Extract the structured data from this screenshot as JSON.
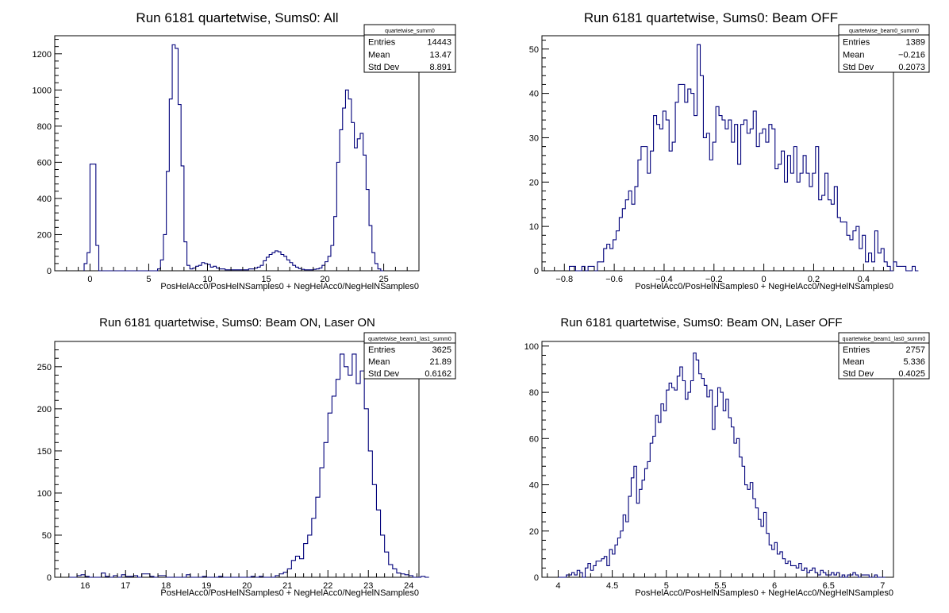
{
  "chart_data": [
    {
      "type": "histogram",
      "title": "Run 6181 quartetwise, Sums0: All",
      "xlabel": "PosHelAcc0/PosHelNSamples0 + NegHelAcc0/NegHelNSamples0",
      "ylabel": "",
      "xlim": [
        -3,
        28
      ],
      "ylim": [
        0,
        1300
      ],
      "xticks": [
        0,
        5,
        10,
        15,
        20,
        25
      ],
      "xtick_labels": [
        "0",
        "5",
        "10",
        "15",
        "20",
        "25"
      ],
      "yticks": [
        0,
        200,
        400,
        600,
        800,
        1000,
        1200
      ],
      "ytick_labels": [
        "0",
        "200",
        "400",
        "600",
        "800",
        "1000",
        "1200"
      ],
      "bin_start": -0.5,
      "bin_width": 0.25,
      "values": [
        40,
        100,
        590,
        590,
        140,
        0,
        0,
        0,
        0,
        0,
        0,
        0,
        0,
        0,
        0,
        0,
        0,
        0,
        0,
        0,
        0,
        0,
        0,
        0,
        0,
        10,
        60,
        200,
        550,
        950,
        1250,
        1230,
        920,
        580,
        160,
        30,
        10,
        15,
        25,
        30,
        45,
        40,
        35,
        20,
        25,
        15,
        10,
        10,
        5,
        5,
        5,
        5,
        5,
        5,
        5,
        5,
        10,
        10,
        15,
        20,
        30,
        55,
        75,
        90,
        100,
        110,
        105,
        90,
        80,
        60,
        45,
        30,
        20,
        12,
        8,
        5,
        5,
        5,
        8,
        10,
        15,
        30,
        50,
        80,
        140,
        300,
        600,
        780,
        900,
        1000,
        950,
        820,
        680,
        730,
        760,
        640,
        450,
        250,
        100,
        40,
        10,
        0
      ],
      "stats": {
        "name": "quartetwise_summ0",
        "entries_label": "Entries",
        "entries": "14443",
        "mean_label": "Mean",
        "mean": "13.47",
        "std_label": "Std Dev",
        "std": "8.891"
      }
    },
    {
      "type": "histogram",
      "title": "Run 6181 quartetwise, Sums0: Beam OFF",
      "xlabel": "PosHelAcc0/PosHelNSamples0 + NegHelAcc0/NegHelNSamples0",
      "ylabel": "",
      "xlim": [
        -0.89,
        0.52
      ],
      "ylim": [
        0,
        53
      ],
      "xticks": [
        -0.8,
        -0.6,
        -0.4,
        -0.2,
        0,
        0.2,
        0.4
      ],
      "xtick_labels": [
        "−0.8",
        "−0.6",
        "−0.4",
        "−0.2",
        "0",
        "0.2",
        "0.4"
      ],
      "yticks": [
        0,
        10,
        20,
        30,
        40,
        50
      ],
      "ytick_labels": [
        "0",
        "10",
        "20",
        "30",
        "40",
        "50"
      ],
      "bin_start": -0.78,
      "bin_width": 0.0125,
      "values": [
        1,
        1,
        0,
        0,
        1,
        0,
        1,
        1,
        0,
        2,
        2,
        5,
        6,
        5,
        7,
        9,
        12,
        14,
        16,
        18,
        15,
        19,
        25,
        28,
        28,
        22,
        27,
        35,
        33,
        32,
        36,
        34,
        27,
        29,
        38,
        42,
        42,
        38,
        41,
        40,
        35,
        51,
        44,
        30,
        31,
        25,
        29,
        37,
        35,
        34,
        32,
        34,
        29,
        33,
        24,
        33,
        34,
        31,
        32,
        36,
        28,
        31,
        32,
        29,
        33,
        32,
        23,
        24,
        27,
        20,
        26,
        22,
        28,
        20,
        22,
        26,
        22,
        19,
        22,
        28,
        16,
        17,
        22,
        16,
        15,
        19,
        12,
        11,
        11,
        8,
        7,
        9,
        10,
        5,
        8,
        2,
        4,
        2,
        9,
        4,
        5,
        2,
        1,
        0,
        2,
        1,
        1,
        1,
        0,
        0,
        1,
        0
      ],
      "stats": {
        "name": "quartetwise_beam0_summ0",
        "entries_label": "Entries",
        "entries": "1389",
        "mean_label": "Mean",
        "mean": "−0.216",
        "std_label": "Std Dev",
        "std": "0.2073"
      }
    },
    {
      "type": "histogram",
      "title": "Run 6181 quartetwise, Sums0: Beam ON, Laser ON",
      "xlabel": "PosHelAcc0/PosHelNSamples0 + NegHelAcc0/NegHelNSamples0",
      "ylabel": "",
      "xlim": [
        15.25,
        24.25
      ],
      "ylim": [
        0,
        280
      ],
      "xticks": [
        16,
        17,
        18,
        19,
        20,
        21,
        22,
        23,
        24
      ],
      "xtick_labels": [
        "16",
        "17",
        "18",
        "19",
        "20",
        "21",
        "22",
        "23",
        "24"
      ],
      "yticks": [
        0,
        50,
        100,
        150,
        200,
        250
      ],
      "ytick_labels": [
        "0",
        "50",
        "100",
        "150",
        "200",
        "250"
      ],
      "bin_start": 15.6,
      "bin_width": 0.1,
      "values": [
        0,
        0,
        2,
        3,
        1,
        0,
        0,
        0,
        5,
        1,
        0,
        2,
        0,
        3,
        1,
        1,
        2,
        0,
        4,
        4,
        1,
        0,
        2,
        2,
        0,
        0,
        0,
        0,
        0,
        3,
        0,
        0,
        0,
        1,
        0,
        0,
        0,
        1,
        0,
        0,
        0,
        0,
        0,
        0,
        0,
        1,
        0,
        1,
        0,
        0,
        0,
        2,
        4,
        6,
        10,
        20,
        25,
        22,
        40,
        50,
        70,
        95,
        130,
        160,
        195,
        215,
        235,
        265,
        250,
        240,
        265,
        230,
        245,
        200,
        150,
        110,
        80,
        50,
        30,
        15,
        10,
        5,
        4,
        3,
        2,
        0,
        0,
        1,
        0
      ],
      "stats": {
        "name": "quartetwise_beam1_las1_summ0",
        "entries_label": "Entries",
        "entries": "3625",
        "mean_label": "Mean",
        "mean": "21.89",
        "std_label": "Std Dev",
        "std": "0.6162"
      }
    },
    {
      "type": "histogram",
      "title": "Run 6181 quartetwise, Sums0: Beam ON, Laser OFF",
      "xlabel": "PosHelAcc0/PosHelNSamples0 + NegHelAcc0/NegHelNSamples0",
      "ylabel": "",
      "xlim": [
        3.85,
        7.1
      ],
      "ylim": [
        0,
        102
      ],
      "xticks": [
        4,
        4.5,
        5,
        5.5,
        6,
        6.5,
        7
      ],
      "xtick_labels": [
        "4",
        "4.5",
        "5",
        "5.5",
        "6",
        "6.5",
        "7"
      ],
      "yticks": [
        0,
        20,
        40,
        60,
        80,
        100
      ],
      "ytick_labels": [
        "0",
        "20",
        "40",
        "60",
        "80",
        "100"
      ],
      "bin_start": 4.0,
      "bin_width": 0.025,
      "values": [
        0,
        0,
        0,
        1,
        1,
        2,
        1,
        3,
        2,
        0,
        4,
        6,
        3,
        5,
        7,
        7,
        8,
        9,
        5,
        12,
        10,
        14,
        17,
        20,
        27,
        24,
        35,
        43,
        48,
        32,
        38,
        42,
        47,
        50,
        58,
        61,
        70,
        67,
        75,
        72,
        81,
        84,
        82,
        81,
        87,
        91,
        85,
        77,
        80,
        85,
        97,
        94,
        88,
        86,
        83,
        78,
        81,
        64,
        74,
        82,
        80,
        72,
        77,
        69,
        65,
        58,
        60,
        52,
        48,
        40,
        38,
        41,
        34,
        30,
        25,
        22,
        28,
        19,
        14,
        12,
        15,
        10,
        11,
        8,
        6,
        7,
        5,
        5,
        4,
        6,
        3,
        4,
        2,
        3,
        4,
        2,
        1,
        3,
        2,
        1,
        1,
        2,
        1,
        2,
        0,
        1,
        0,
        1,
        1,
        2,
        1,
        0,
        1,
        1,
        1,
        0,
        0,
        1,
        0,
        0,
        0
      ],
      "stats": {
        "name": "quartetwise_beam1_las0_summ0",
        "entries_label": "Entries",
        "entries": "2757",
        "mean_label": "Mean",
        "mean": "5.336",
        "std_label": "Std Dev",
        "std": "0.4025"
      }
    }
  ],
  "colors": {
    "line": "#00007a",
    "axis": "#000000",
    "background": "#ffffff"
  }
}
